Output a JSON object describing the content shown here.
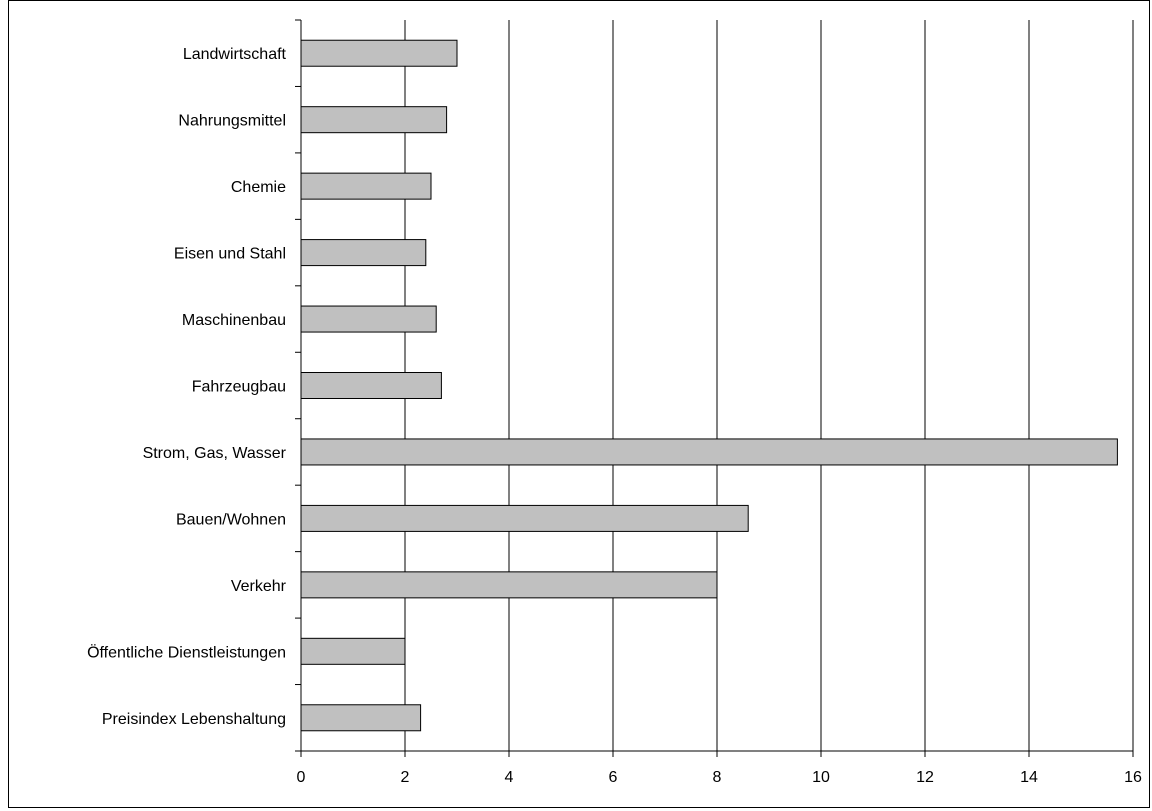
{
  "chart_data": {
    "type": "bar",
    "orientation": "horizontal",
    "categories": [
      "Landwirtschaft",
      "Nahrungsmittel",
      "Chemie",
      "Eisen und Stahl",
      "Maschinenbau",
      "Fahrzeugbau",
      "Strom, Gas, Wasser",
      "Bauen/Wohnen",
      "Verkehr",
      "Öffentliche Dienstleistungen",
      "Preisindex Lebenshaltung"
    ],
    "values": [
      3.0,
      2.8,
      2.5,
      2.4,
      2.6,
      2.7,
      15.7,
      8.6,
      8.0,
      2.0,
      2.3
    ],
    "xlim": [
      0,
      16
    ],
    "x_ticks": [
      "0",
      "2",
      "4",
      "6",
      "8",
      "10",
      "12",
      "14",
      "16"
    ],
    "grid": "vertical",
    "legend": "none",
    "title": "",
    "xlabel": "",
    "ylabel": "",
    "colors": {
      "bar_fill": "#c0c0c0",
      "bar_stroke": "#000000",
      "grid": "#000000",
      "background": "#ffffff"
    }
  }
}
